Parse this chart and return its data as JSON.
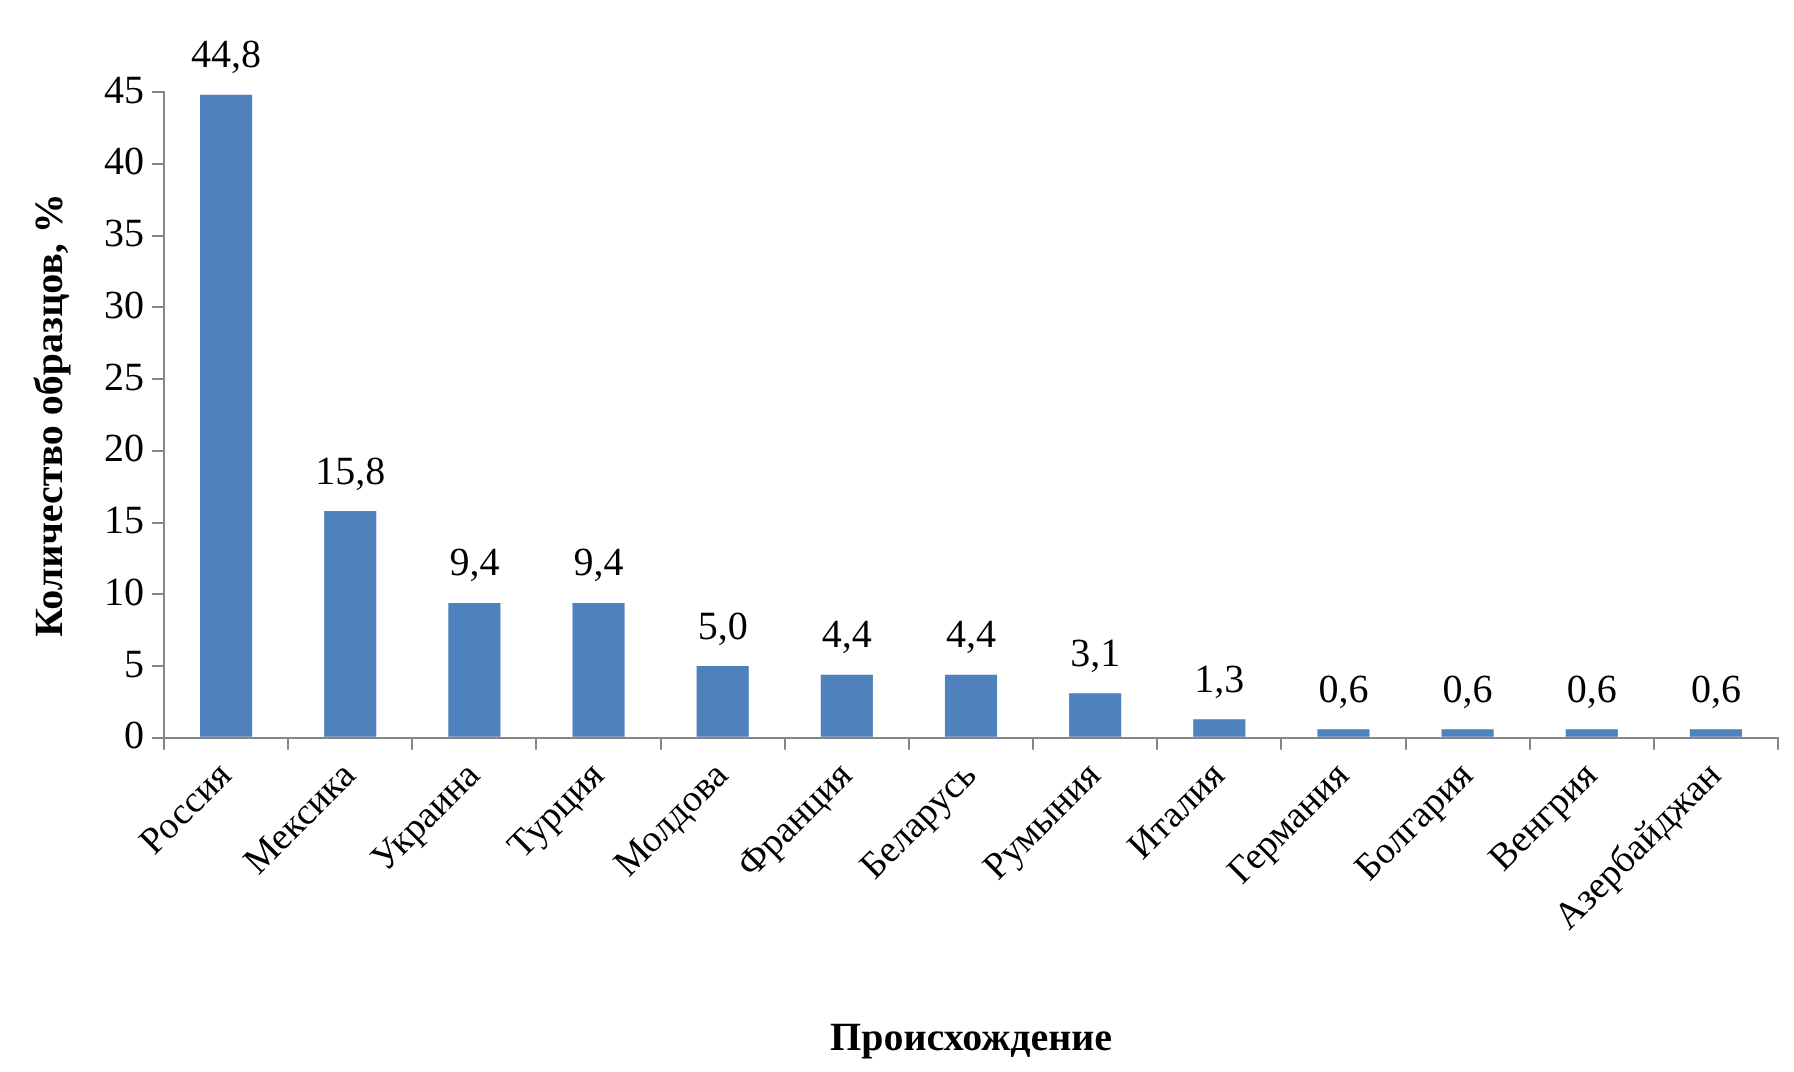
{
  "chart_data": {
    "type": "bar",
    "xlabel": "Происхождение",
    "ylabel": "Количество образцов, %",
    "categories": [
      "Россия",
      "Мексика",
      "Украина",
      "Турция",
      "Молдова",
      "Франция",
      "Беларусь",
      "Румыния",
      "Италия",
      "Германия",
      "Болгария",
      "Венгрия",
      "Азербайджан"
    ],
    "values": [
      44.8,
      15.8,
      9.4,
      9.4,
      5.0,
      4.4,
      4.4,
      3.1,
      1.3,
      0.6,
      0.6,
      0.6,
      0.6
    ],
    "value_labels": [
      "44,8",
      "15,8",
      "9,4",
      "9,4",
      "5,0",
      "4,4",
      "4,4",
      "3,1",
      "1,3",
      "0,6",
      "0,6",
      "0,6",
      "0,6"
    ],
    "color": "#4f81bd",
    "ylim": [
      0,
      45
    ],
    "yticks": [
      0,
      5,
      10,
      15,
      20,
      25,
      30,
      35,
      40,
      45
    ],
    "grid": false
  }
}
